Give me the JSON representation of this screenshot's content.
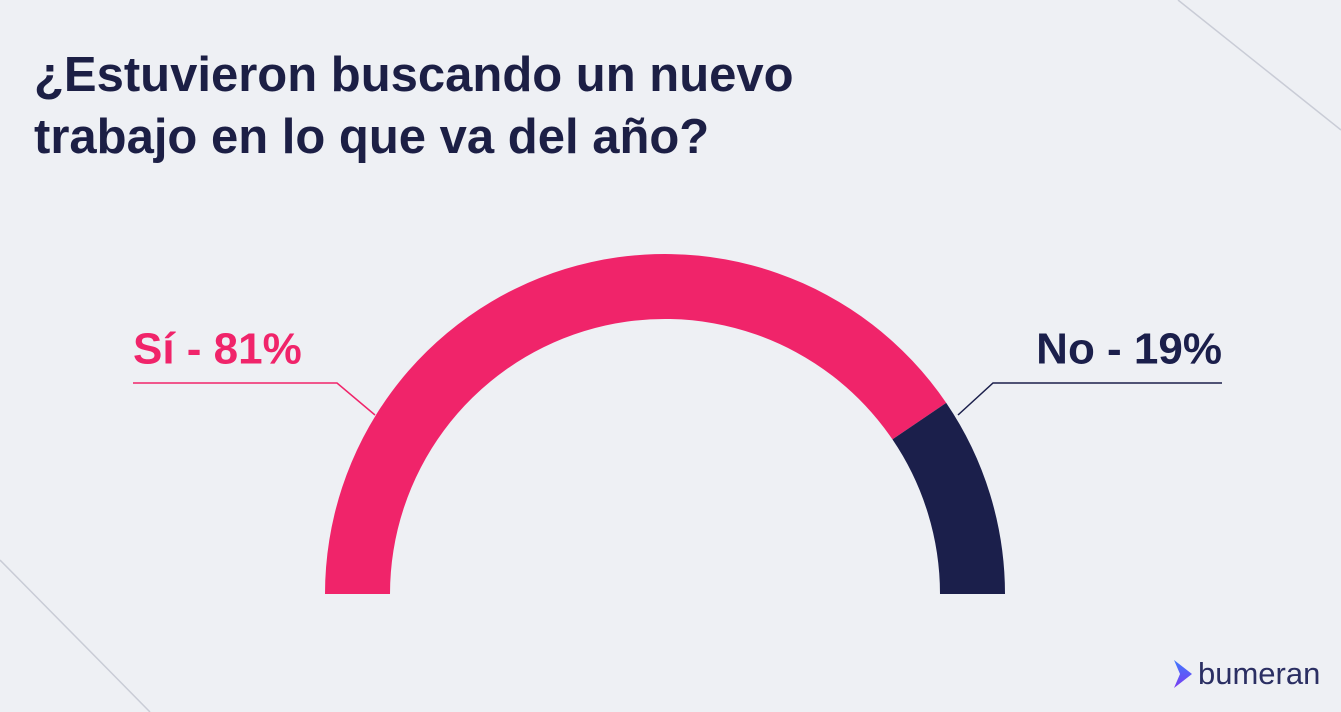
{
  "chart_data": {
    "type": "halfdonut",
    "title": "¿Estuvieron buscando un nuevo trabajo en lo que va del año?",
    "values": [
      81,
      19
    ],
    "value_labels": [
      "Sí - 81%",
      "No - 19%"
    ],
    "colors": [
      "#f0246a",
      "#1b1f4b"
    ]
  },
  "brand": "bumeran"
}
